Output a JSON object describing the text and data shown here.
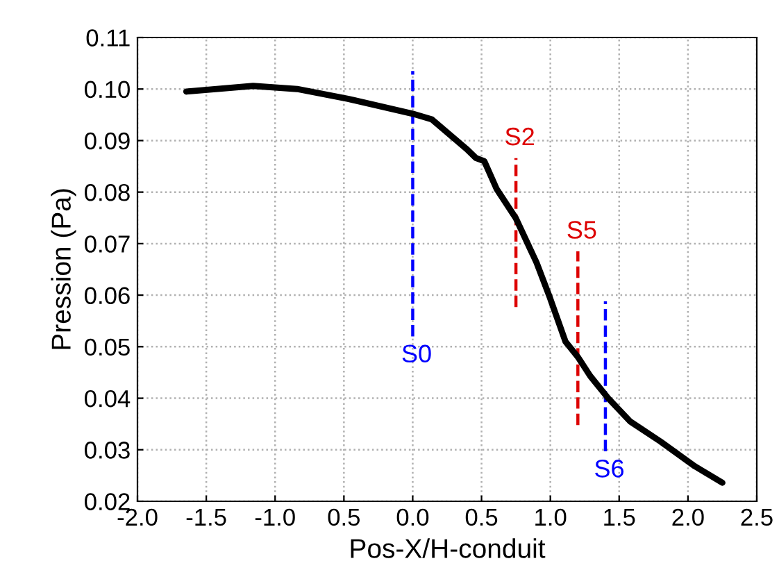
{
  "chart_data": {
    "type": "line",
    "xlabel": "Pos-X/H-conduit",
    "ylabel": "Pression (Pa)",
    "xlim": [
      -2.0,
      2.5
    ],
    "ylim": [
      0.02,
      0.11
    ],
    "xticks": [
      {
        "value": -2.0,
        "label": "-2.0"
      },
      {
        "value": -1.5,
        "label": "-1.5"
      },
      {
        "value": -1.0,
        "label": "-1.0"
      },
      {
        "value": -0.5,
        "label": "0.5"
      },
      {
        "value": 0.0,
        "label": "0.0"
      },
      {
        "value": 0.5,
        "label": "0.5"
      },
      {
        "value": 1.0,
        "label": "1.0"
      },
      {
        "value": 1.5,
        "label": "1.5"
      },
      {
        "value": 2.0,
        "label": "2.0"
      },
      {
        "value": 2.5,
        "label": "2.5"
      }
    ],
    "yticks": [
      {
        "value": 0.02,
        "label": "0.02"
      },
      {
        "value": 0.03,
        "label": "0.03"
      },
      {
        "value": 0.04,
        "label": "0.04"
      },
      {
        "value": 0.05,
        "label": "0.05"
      },
      {
        "value": 0.06,
        "label": "0.06"
      },
      {
        "value": 0.07,
        "label": "0.07"
      },
      {
        "value": 0.08,
        "label": "0.08"
      },
      {
        "value": 0.09,
        "label": "0.09"
      },
      {
        "value": 0.1,
        "label": "0.10"
      },
      {
        "value": 0.11,
        "label": "0.11"
      }
    ],
    "grid": true,
    "line_style": "solid",
    "marker": "none",
    "series": [
      {
        "color": "#000000",
        "x": [
          -1.645,
          -1.16,
          -0.84,
          -0.47,
          0.0,
          0.14,
          0.39,
          0.46,
          0.52,
          0.61,
          0.75,
          0.9,
          0.99,
          1.11,
          1.2,
          1.29,
          1.42,
          1.58,
          1.8,
          2.05,
          2.25
        ],
        "values": [
          0.0995,
          0.1006,
          0.1,
          0.0981,
          0.0952,
          0.0941,
          0.0884,
          0.0866,
          0.086,
          0.0806,
          0.0749,
          0.0663,
          0.06,
          0.051,
          0.048,
          0.0443,
          0.04,
          0.0355,
          0.0316,
          0.0268,
          0.0236
        ]
      },
      {
        "name": "S0",
        "color": "#0000ff",
        "line_style": "dashed",
        "x": [
          0.0,
          0.0
        ],
        "values": [
          0.052,
          0.1035
        ]
      },
      {
        "name": "S2",
        "color": "#dd0000",
        "line_style": "dashed",
        "x": [
          0.75,
          0.75
        ],
        "values": [
          0.0577,
          0.0866
        ]
      },
      {
        "name": "S5",
        "color": "#dd0000",
        "line_style": "dashed",
        "x": [
          1.2,
          1.2
        ],
        "values": [
          0.0348,
          0.0685
        ]
      },
      {
        "name": "S6",
        "color": "#0000ff",
        "line_style": "dashed",
        "x": [
          1.4,
          1.4
        ],
        "values": [
          0.0297,
          0.0588
        ]
      }
    ]
  }
}
